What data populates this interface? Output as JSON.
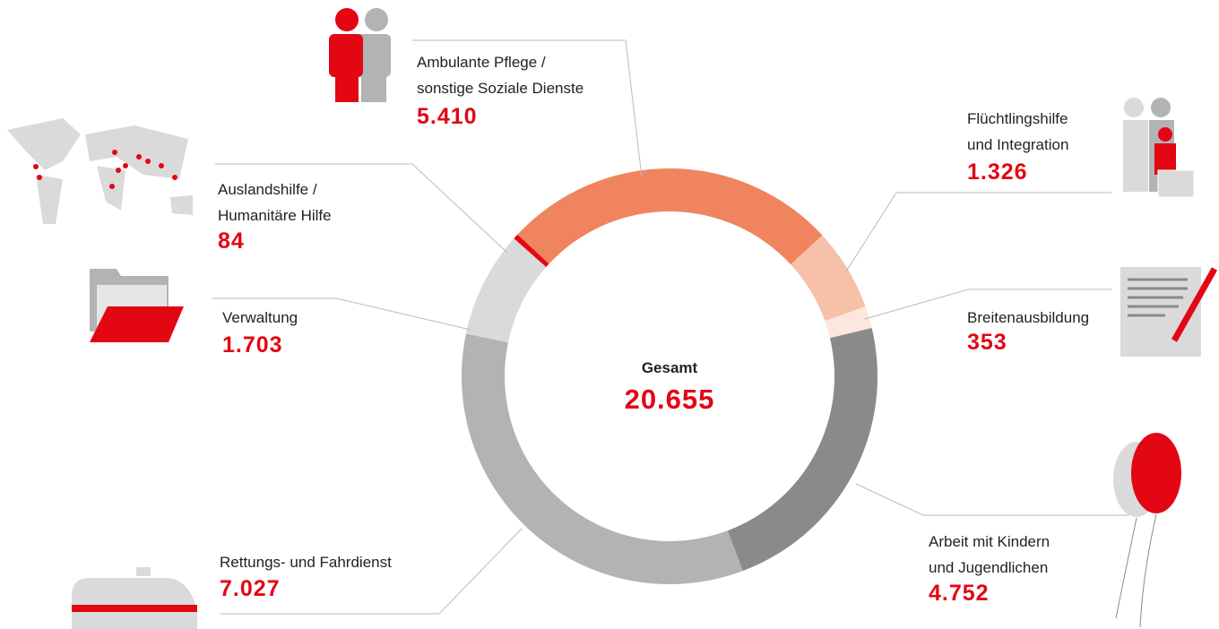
{
  "chart_data": {
    "type": "donut",
    "center_title": "Gesamt",
    "total": 20655,
    "total_label": "20.655",
    "categories": [
      "Ambulante Pflege /\nsonstige Soziale Dienste",
      "Flüchtlingshilfe\nund Integration",
      "Breitenausbildung",
      "Arbeit mit Kindern\nund Jugendlichen",
      "Rettungs- und Fahrdienst",
      "Verwaltung",
      "Auslandshilfe /\nHumanitäre Hilfe"
    ],
    "values": [
      5410,
      1326,
      353,
      4752,
      7027,
      1703,
      84
    ],
    "value_labels": [
      "5.410",
      "1.326",
      "353",
      "4.752",
      "7.027",
      "1.703",
      "84"
    ],
    "colors": [
      "#f0845f",
      "#f7c1a9",
      "#fde6dd",
      "#8a8a8a",
      "#b2b3b5",
      "#dadada",
      "#e30613"
    ]
  }
}
